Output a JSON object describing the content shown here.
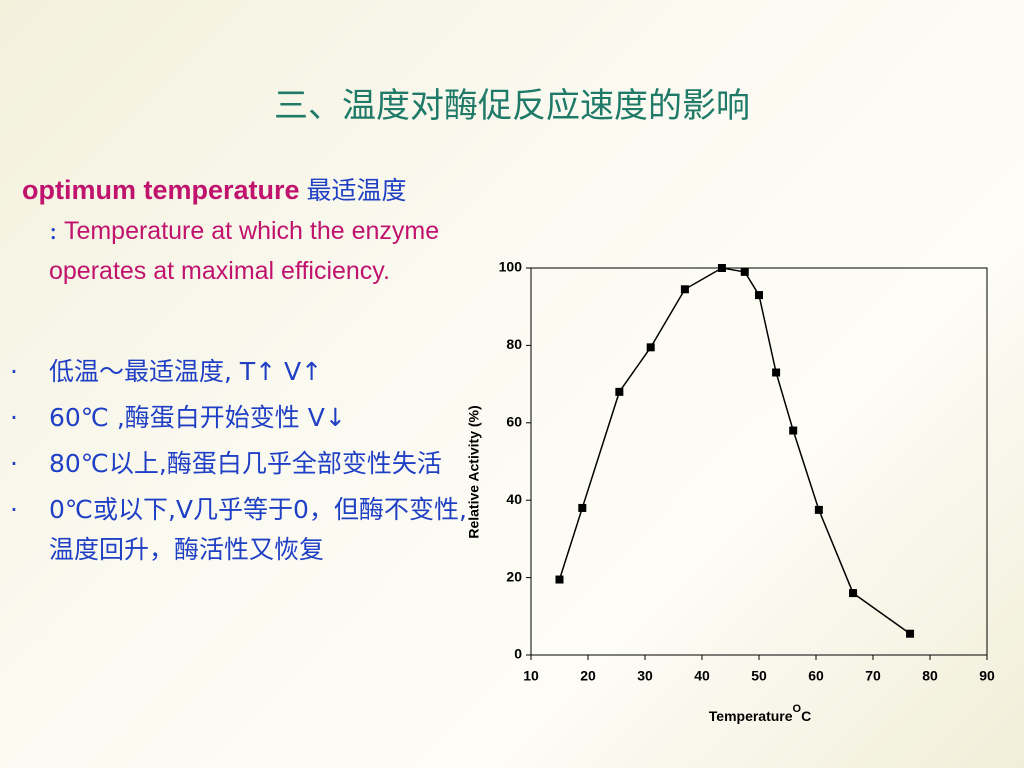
{
  "title": "三、温度对酶促反应速度的影响",
  "intro": {
    "term": "optimum temperature",
    "term_cn": "最适温度",
    "colon": ":",
    "definition": "Temperature at which the enzyme operates at maximal efficiency",
    "period": "."
  },
  "bullets": [
    "低温～最适温度, T↑  V↑",
    "60℃ ,酶蛋白开始变性   V↓",
    "80℃以上,酶蛋白几乎全部变性失活",
    "0℃或以下,V几乎等于0，但酶不变性,温度回升，酶活性又恢复"
  ],
  "chart_data": {
    "type": "line",
    "x_label": "Temperature",
    "x_label_sup": "O",
    "x_label_unit": "C",
    "y_label": "Relative Activity (%)",
    "x": [
      15,
      19,
      25.5,
      31,
      37,
      43.5,
      47.5,
      50,
      53,
      56,
      60.5,
      66.5,
      76.5
    ],
    "values": [
      19.5,
      38,
      68,
      79.5,
      94.5,
      100,
      99,
      93,
      73,
      58,
      37.5,
      16,
      5.5
    ],
    "color": "#000000",
    "xlim": [
      10,
      90
    ],
    "xticks": [
      10,
      20,
      30,
      40,
      50,
      60,
      70,
      80,
      90
    ],
    "ylim": [
      0,
      100
    ],
    "yticks": [
      0,
      20,
      40,
      60,
      80,
      100
    ]
  }
}
